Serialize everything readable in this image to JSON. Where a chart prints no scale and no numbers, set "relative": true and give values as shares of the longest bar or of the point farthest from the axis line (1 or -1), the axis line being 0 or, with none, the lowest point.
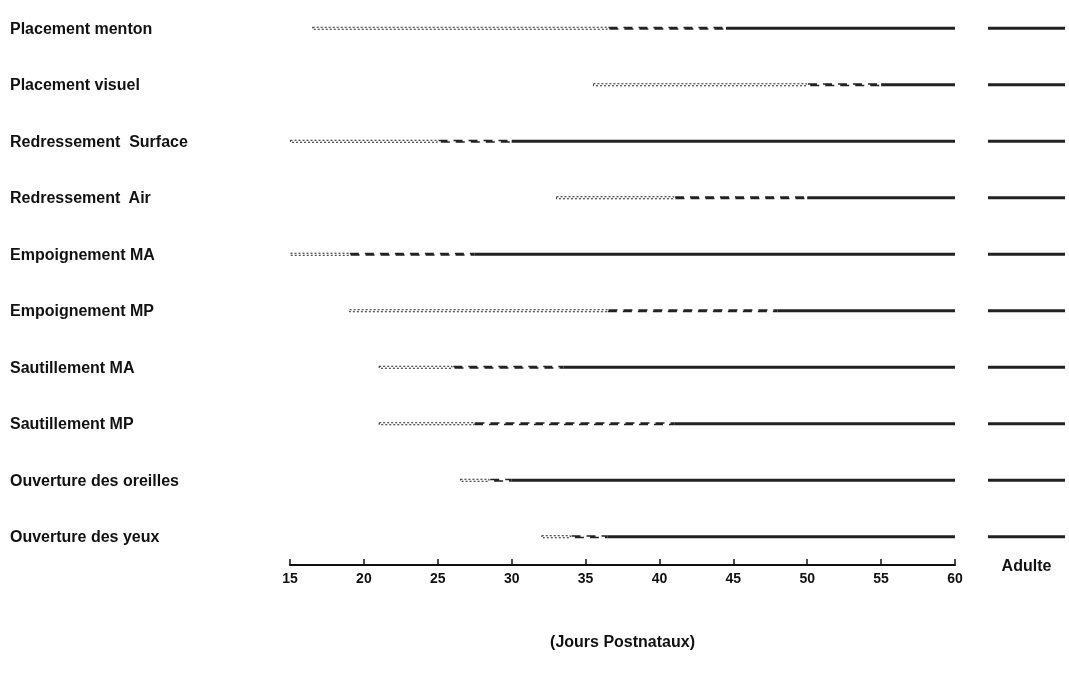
{
  "chart_data": [
    {
      "type": "bar",
      "orientation": "horizontal",
      "xlabel": "(Jours Postnataux)",
      "categories": [
        "Placement menton",
        "Placement visuel",
        "Redressement  Surface",
        "Redressement  Air",
        "Empoignement MA",
        "Empoignement MP",
        "Sautillement MA",
        "Sautillement MP",
        "Ouverture des oreilles",
        "Ouverture des yeux"
      ],
      "series": [
        {
          "color": "#222222",
          "line_style": "dotted",
          "base": [
            16.5,
            35.5,
            15,
            33,
            15,
            19,
            21,
            21,
            26.5,
            32
          ],
          "values": [
            20,
            14.5,
            10,
            8,
            4,
            17.5,
            5,
            6.5,
            2,
            2
          ]
        },
        {
          "color": "#222222",
          "line_style": "dashed",
          "base": [
            36.5,
            50,
            25,
            41,
            19,
            36.5,
            26,
            27.5,
            28.5,
            34
          ],
          "values": [
            8,
            5,
            5,
            9,
            8.5,
            11.5,
            7.5,
            13.5,
            1.5,
            2.5
          ]
        },
        {
          "color": "#222222",
          "line_style": "solid",
          "base": [
            44.5,
            55,
            30,
            50,
            27.5,
            48,
            33.5,
            41,
            30,
            36.5
          ],
          "values": [
            15.5,
            5,
            30,
            10,
            32.5,
            12,
            26.5,
            19,
            30,
            23.5
          ]
        }
      ],
      "xlim": [
        15,
        60
      ],
      "xticks": [
        15,
        20,
        25,
        30,
        35,
        40,
        45,
        50,
        55,
        60
      ]
    },
    {
      "type": "bar",
      "orientation": "horizontal",
      "relative": true,
      "xlabel": "Adulte",
      "categories": [
        null,
        null,
        null,
        null,
        null,
        null,
        null,
        null,
        null,
        null
      ],
      "series": [
        {
          "color": "#222222",
          "line_style": "solid",
          "values": [
            1,
            1,
            1,
            1,
            1,
            1,
            1,
            1,
            1,
            1
          ]
        }
      ]
    }
  ]
}
